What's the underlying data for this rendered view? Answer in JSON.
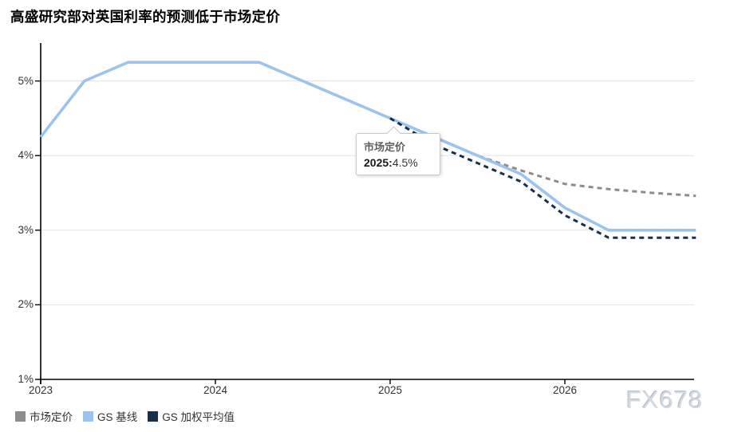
{
  "title": "高盛研究部对英国利率的预测低于市场定价",
  "watermark": "FX678",
  "tooltip": {
    "series_label": "市场定价",
    "bold_part": "2025:",
    "value": "4.5%"
  },
  "legend": {
    "items": [
      {
        "id": "market-pricing",
        "label": "市场定价",
        "color": "#8c8c8c"
      },
      {
        "id": "gs-baseline",
        "label": "GS 基线",
        "color": "#9ac4f0"
      },
      {
        "id": "gs-weighted-average",
        "label": "GS 加权平均值",
        "color": "#15304c"
      }
    ]
  },
  "chart_data": {
    "type": "line",
    "title": "高盛研究部对英国利率的预测低于市场定价",
    "xlabel": "",
    "ylabel": "",
    "x_ticks": [
      2023,
      2024,
      2025,
      2026
    ],
    "y_ticks": [
      1,
      2,
      3,
      4,
      5
    ],
    "y_tick_labels": [
      "1%",
      "2%",
      "3%",
      "4%",
      "5%"
    ],
    "xlim": [
      2023,
      2026.74
    ],
    "ylim": [
      1,
      5.51
    ],
    "grid": "horizontal",
    "legend_position": "bottom-left",
    "annotation": {
      "series": "市场定价",
      "x": 2025,
      "y": 4.5,
      "text": "2025:4.5%"
    },
    "series": [
      {
        "id": "market-pricing",
        "name": "市场定价",
        "color": "#8c8c8c",
        "style": "dashed",
        "points": [
          [
            2025,
            4.5
          ],
          [
            2025.25,
            4.25
          ],
          [
            2025.5,
            4.0
          ],
          [
            2025.75,
            3.8
          ],
          [
            2026,
            3.62
          ],
          [
            2026.25,
            3.55
          ],
          [
            2026.5,
            3.5
          ],
          [
            2026.75,
            3.46
          ]
        ]
      },
      {
        "id": "gs-baseline",
        "name": "GS 基线",
        "color": "#9ac4f0",
        "style": "solid",
        "points": [
          [
            2023,
            4.25
          ],
          [
            2023.25,
            5.0
          ],
          [
            2023.5,
            5.25
          ],
          [
            2023.75,
            5.25
          ],
          [
            2024,
            5.25
          ],
          [
            2024.25,
            5.25
          ],
          [
            2024.5,
            5.0
          ],
          [
            2024.75,
            4.75
          ],
          [
            2025,
            4.5
          ],
          [
            2025.25,
            4.25
          ],
          [
            2025.5,
            4.0
          ],
          [
            2025.75,
            3.75
          ],
          [
            2026,
            3.3
          ],
          [
            2026.25,
            3.0
          ],
          [
            2026.5,
            3.0
          ],
          [
            2026.75,
            3.0
          ]
        ]
      },
      {
        "id": "gs-weighted-average",
        "name": "GS 加权平均值",
        "color": "#15304c",
        "style": "dashed",
        "points": [
          [
            2025,
            4.5
          ],
          [
            2025.25,
            4.15
          ],
          [
            2025.5,
            3.9
          ],
          [
            2025.75,
            3.65
          ],
          [
            2026,
            3.2
          ],
          [
            2026.25,
            2.9
          ],
          [
            2026.5,
            2.9
          ],
          [
            2026.75,
            2.9
          ]
        ]
      }
    ]
  }
}
